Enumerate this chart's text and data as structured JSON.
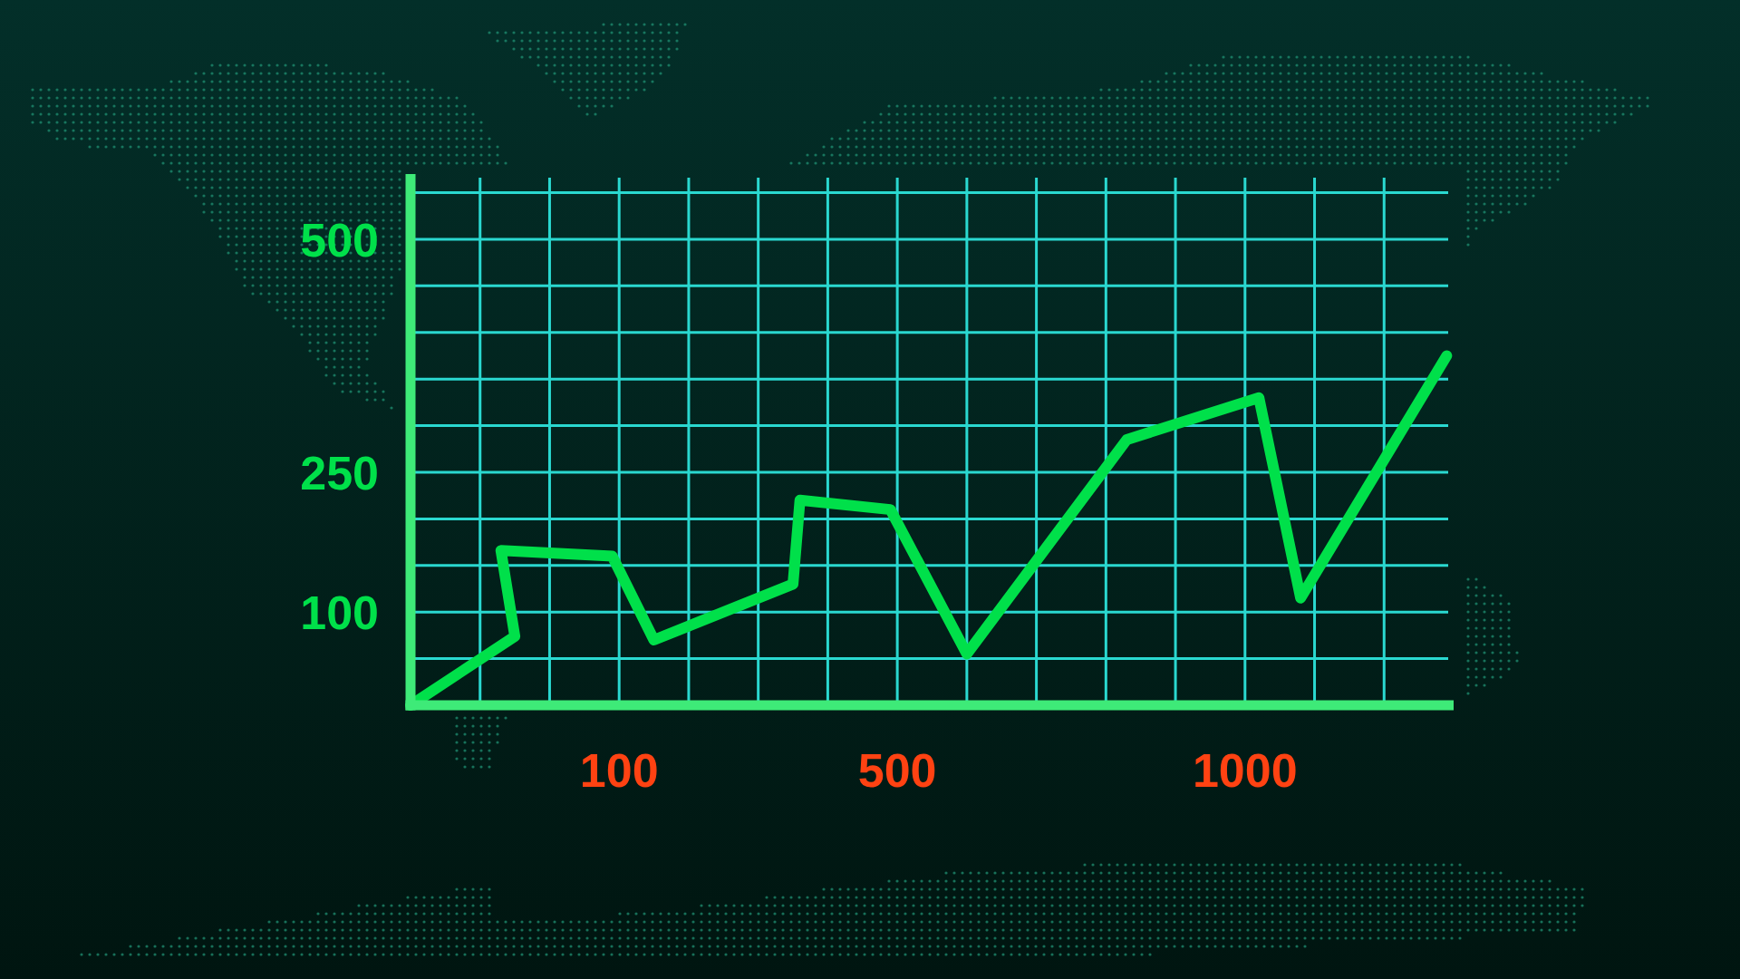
{
  "chart_data": {
    "type": "line",
    "x": [
      -200,
      -50,
      -70,
      90,
      150,
      350,
      360,
      490,
      600,
      830,
      1020,
      1080,
      1290
    ],
    "series": [
      {
        "color": "#00e04a",
        "values": [
          0,
          74,
          166,
          160,
          70,
          130,
          220,
          210,
          55,
          285,
          330,
          115,
          375
        ]
      }
    ],
    "xlim": [
      -200,
      1300
    ],
    "xticks": [
      {
        "value": -100,
        "label": null
      },
      {
        "value": 0,
        "label": null
      },
      100,
      {
        "value": 200,
        "label": null
      },
      {
        "value": 300,
        "label": null
      },
      {
        "value": 400,
        "label": null
      },
      500,
      {
        "value": 600,
        "label": null
      },
      {
        "value": 700,
        "label": null
      },
      {
        "value": 800,
        "label": null
      },
      {
        "value": 900,
        "label": null
      },
      1000,
      {
        "value": 1100,
        "label": null
      },
      {
        "value": 1200,
        "label": null
      }
    ],
    "ylim": [
      0,
      570
    ],
    "yticks": [
      {
        "value": 50,
        "label": null
      },
      100,
      {
        "value": 150,
        "label": null
      },
      {
        "value": 200,
        "label": null
      },
      250,
      {
        "value": 300,
        "label": null
      },
      {
        "value": 350,
        "label": null
      },
      {
        "value": 400,
        "label": null
      },
      {
        "value": 450,
        "label": null
      },
      500,
      {
        "value": 550,
        "label": null
      }
    ],
    "grid": true,
    "line_style": "solid"
  }
}
